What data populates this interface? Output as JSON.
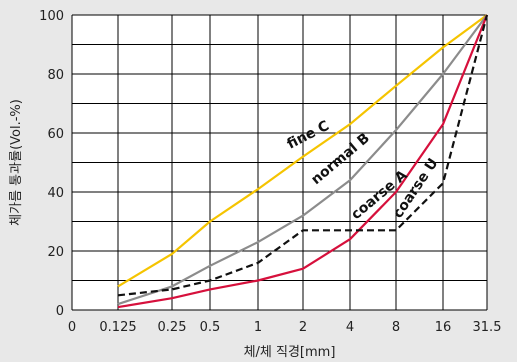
{
  "chart_data": {
    "type": "line",
    "xlabel": "체/체 직경[mm]",
    "ylabel": "체가름 통과률(Vol.-%)",
    "x_ticks": [
      "0",
      "0.125",
      "0.25",
      "0.5",
      "1",
      "2",
      "4",
      "8",
      "16",
      "31.5"
    ],
    "y_ticks": [
      "0",
      "20",
      "40",
      "60",
      "80",
      "100"
    ],
    "ylim": [
      0,
      100
    ],
    "x_scale": "log2 (sieve sizes, equally spaced)",
    "grid": true,
    "series": [
      {
        "name": "fine C",
        "color": "#f5c400",
        "dash": "solid",
        "x": [
          "0.125",
          "0.25",
          "0.5",
          "1",
          "2",
          "4",
          "8",
          "16",
          "31.5"
        ],
        "values": [
          8,
          19,
          30,
          41,
          52,
          63,
          76,
          89,
          100
        ]
      },
      {
        "name": "normal B",
        "color": "#8c8c8c",
        "dash": "solid",
        "x": [
          "0.125",
          "0.25",
          "0.5",
          "1",
          "2",
          "4",
          "8",
          "16",
          "31.5"
        ],
        "values": [
          2,
          8,
          15,
          23,
          32,
          44,
          61,
          80,
          100
        ]
      },
      {
        "name": "coarse A",
        "color": "#d6103c",
        "dash": "solid",
        "x": [
          "0.125",
          "0.25",
          "0.5",
          "1",
          "2",
          "4",
          "8",
          "16",
          "31.5"
        ],
        "values": [
          1,
          4,
          7,
          10,
          14,
          24,
          40,
          63,
          100
        ]
      },
      {
        "name": "coarse U",
        "color": "#111111",
        "dash": "dashed",
        "x": [
          "0.125",
          "0.25",
          "0.5",
          "1",
          "2",
          "4",
          "8",
          "16",
          "31.5"
        ],
        "values": [
          5,
          7,
          10,
          16,
          27,
          27,
          27,
          43,
          100
        ]
      }
    ]
  }
}
